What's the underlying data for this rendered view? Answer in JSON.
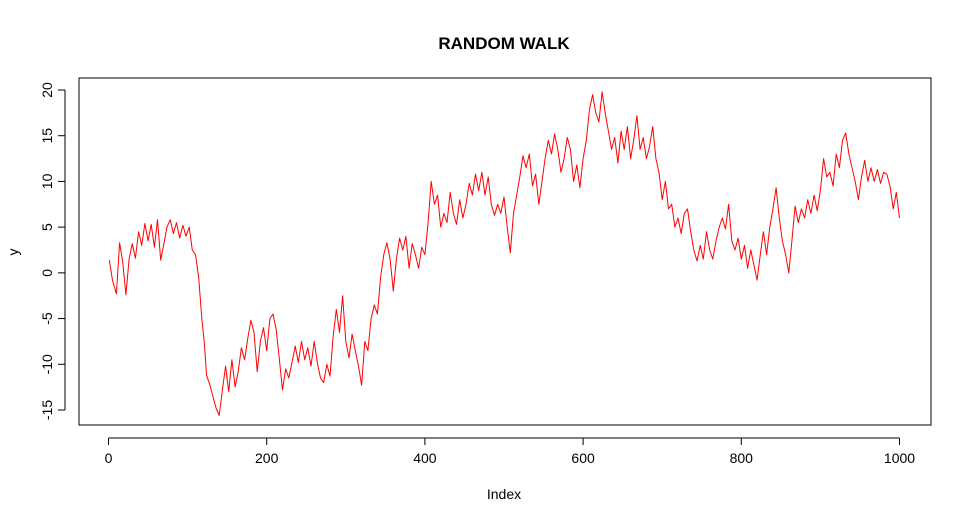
{
  "chart_data": {
    "type": "line",
    "title": "RANDOM WALK",
    "xlabel": "Index",
    "ylabel": "y",
    "xlim": [
      0,
      1000
    ],
    "ylim": [
      -15.5,
      20
    ],
    "x_ticks": [
      0,
      200,
      400,
      600,
      800,
      1000
    ],
    "y_ticks": [
      -15,
      -10,
      -5,
      0,
      5,
      10,
      15,
      20
    ],
    "grid": false,
    "box": true,
    "series": [
      {
        "color": "#ff0000",
        "points": [
          [
            1,
            1.4
          ],
          [
            5,
            -0.8
          ],
          [
            10,
            -2.3
          ],
          [
            14,
            3.3
          ],
          [
            18,
            1.2
          ],
          [
            22,
            -2.4
          ],
          [
            26,
            1.5
          ],
          [
            30,
            3.2
          ],
          [
            34,
            1.6
          ],
          [
            38,
            4.5
          ],
          [
            42,
            3.0
          ],
          [
            46,
            5.4
          ],
          [
            50,
            3.5
          ],
          [
            54,
            5.3
          ],
          [
            58,
            2.8
          ],
          [
            62,
            5.8
          ],
          [
            66,
            1.4
          ],
          [
            70,
            3.2
          ],
          [
            74,
            5.0
          ],
          [
            78,
            5.8
          ],
          [
            82,
            4.3
          ],
          [
            86,
            5.5
          ],
          [
            90,
            3.8
          ],
          [
            94,
            5.2
          ],
          [
            98,
            4.0
          ],
          [
            102,
            5.0
          ],
          [
            106,
            2.5
          ],
          [
            110,
            2.0
          ],
          [
            114,
            -0.5
          ],
          [
            118,
            -5.0
          ],
          [
            121,
            -7.5
          ],
          [
            124,
            -11.2
          ],
          [
            128,
            -12.2
          ],
          [
            132,
            -13.5
          ],
          [
            136,
            -14.8
          ],
          [
            140,
            -15.6
          ],
          [
            144,
            -12.8
          ],
          [
            148,
            -10.2
          ],
          [
            152,
            -13.0
          ],
          [
            156,
            -9.5
          ],
          [
            160,
            -12.5
          ],
          [
            164,
            -10.8
          ],
          [
            168,
            -8.2
          ],
          [
            172,
            -9.5
          ],
          [
            176,
            -7.2
          ],
          [
            180,
            -5.2
          ],
          [
            184,
            -6.5
          ],
          [
            188,
            -10.8
          ],
          [
            192,
            -7.5
          ],
          [
            196,
            -6.0
          ],
          [
            200,
            -8.5
          ],
          [
            204,
            -5.0
          ],
          [
            208,
            -4.5
          ],
          [
            212,
            -6.2
          ],
          [
            216,
            -9.5
          ],
          [
            220,
            -12.8
          ],
          [
            224,
            -10.5
          ],
          [
            228,
            -11.5
          ],
          [
            232,
            -9.8
          ],
          [
            236,
            -8.0
          ],
          [
            240,
            -9.8
          ],
          [
            244,
            -7.5
          ],
          [
            248,
            -9.5
          ],
          [
            252,
            -8.2
          ],
          [
            256,
            -10.2
          ],
          [
            260,
            -7.5
          ],
          [
            264,
            -9.8
          ],
          [
            268,
            -11.5
          ],
          [
            272,
            -12.0
          ],
          [
            276,
            -10.0
          ],
          [
            280,
            -11.3
          ],
          [
            284,
            -7.0
          ],
          [
            288,
            -4.0
          ],
          [
            292,
            -6.5
          ],
          [
            296,
            -2.5
          ],
          [
            300,
            -7.5
          ],
          [
            304,
            -9.3
          ],
          [
            308,
            -6.7
          ],
          [
            312,
            -8.5
          ],
          [
            316,
            -10.2
          ],
          [
            320,
            -12.3
          ],
          [
            324,
            -7.5
          ],
          [
            328,
            -8.5
          ],
          [
            332,
            -5.0
          ],
          [
            336,
            -3.5
          ],
          [
            340,
            -4.5
          ],
          [
            344,
            -0.5
          ],
          [
            348,
            2.0
          ],
          [
            352,
            3.3
          ],
          [
            356,
            1.5
          ],
          [
            360,
            -2.0
          ],
          [
            364,
            1.5
          ],
          [
            368,
            3.8
          ],
          [
            372,
            2.5
          ],
          [
            376,
            4.0
          ],
          [
            380,
            0.5
          ],
          [
            384,
            3.2
          ],
          [
            388,
            2.0
          ],
          [
            392,
            0.5
          ],
          [
            396,
            2.8
          ],
          [
            400,
            2.0
          ],
          [
            404,
            5.5
          ],
          [
            408,
            10.0
          ],
          [
            412,
            7.5
          ],
          [
            416,
            8.5
          ],
          [
            420,
            5.0
          ],
          [
            424,
            6.5
          ],
          [
            428,
            5.5
          ],
          [
            432,
            8.8
          ],
          [
            436,
            6.5
          ],
          [
            440,
            5.3
          ],
          [
            444,
            8.0
          ],
          [
            448,
            6.0
          ],
          [
            452,
            7.5
          ],
          [
            456,
            9.8
          ],
          [
            460,
            8.5
          ],
          [
            464,
            10.8
          ],
          [
            468,
            9.0
          ],
          [
            472,
            11.0
          ],
          [
            476,
            8.5
          ],
          [
            480,
            10.5
          ],
          [
            484,
            7.5
          ],
          [
            488,
            6.3
          ],
          [
            492,
            7.5
          ],
          [
            496,
            6.5
          ],
          [
            500,
            8.3
          ],
          [
            504,
            5.0
          ],
          [
            508,
            2.2
          ],
          [
            512,
            6.5
          ],
          [
            516,
            8.5
          ],
          [
            520,
            10.5
          ],
          [
            524,
            12.8
          ],
          [
            528,
            11.5
          ],
          [
            532,
            13.0
          ],
          [
            536,
            9.5
          ],
          [
            540,
            10.8
          ],
          [
            544,
            7.5
          ],
          [
            548,
            10.0
          ],
          [
            552,
            12.5
          ],
          [
            556,
            14.5
          ],
          [
            560,
            13.0
          ],
          [
            564,
            15.2
          ],
          [
            568,
            13.5
          ],
          [
            572,
            11.0
          ],
          [
            576,
            12.5
          ],
          [
            580,
            14.8
          ],
          [
            584,
            13.5
          ],
          [
            588,
            10.0
          ],
          [
            592,
            11.8
          ],
          [
            596,
            9.3
          ],
          [
            600,
            12.5
          ],
          [
            604,
            14.5
          ],
          [
            608,
            17.8
          ],
          [
            612,
            19.5
          ],
          [
            616,
            17.5
          ],
          [
            620,
            16.5
          ],
          [
            624,
            19.8
          ],
          [
            628,
            17.5
          ],
          [
            632,
            15.5
          ],
          [
            636,
            13.5
          ],
          [
            640,
            14.8
          ],
          [
            644,
            12.0
          ],
          [
            648,
            15.5
          ],
          [
            652,
            13.5
          ],
          [
            656,
            16.0
          ],
          [
            660,
            12.5
          ],
          [
            664,
            14.5
          ],
          [
            668,
            17.2
          ],
          [
            672,
            13.5
          ],
          [
            676,
            14.8
          ],
          [
            680,
            12.5
          ],
          [
            684,
            13.8
          ],
          [
            688,
            16.0
          ],
          [
            692,
            12.5
          ],
          [
            696,
            11.0
          ],
          [
            700,
            8.0
          ],
          [
            704,
            10.0
          ],
          [
            708,
            7.0
          ],
          [
            712,
            7.5
          ],
          [
            716,
            5.0
          ],
          [
            720,
            6.0
          ],
          [
            724,
            4.3
          ],
          [
            728,
            6.5
          ],
          [
            732,
            7.0
          ],
          [
            736,
            4.5
          ],
          [
            740,
            2.5
          ],
          [
            744,
            1.3
          ],
          [
            748,
            3.0
          ],
          [
            752,
            1.5
          ],
          [
            756,
            4.5
          ],
          [
            760,
            2.5
          ],
          [
            764,
            1.5
          ],
          [
            768,
            3.5
          ],
          [
            772,
            5.0
          ],
          [
            776,
            6.0
          ],
          [
            780,
            4.8
          ],
          [
            784,
            7.5
          ],
          [
            788,
            3.5
          ],
          [
            792,
            2.5
          ],
          [
            796,
            3.8
          ],
          [
            800,
            1.5
          ],
          [
            804,
            3.0
          ],
          [
            808,
            0.5
          ],
          [
            812,
            2.5
          ],
          [
            816,
            0.8
          ],
          [
            820,
            -0.8
          ],
          [
            824,
            2.0
          ],
          [
            828,
            4.5
          ],
          [
            832,
            2.0
          ],
          [
            836,
            5.0
          ],
          [
            840,
            7.0
          ],
          [
            844,
            9.3
          ],
          [
            848,
            6.0
          ],
          [
            852,
            3.5
          ],
          [
            856,
            2.0
          ],
          [
            860,
            0.0
          ],
          [
            864,
            3.5
          ],
          [
            868,
            7.3
          ],
          [
            872,
            5.5
          ],
          [
            876,
            7.0
          ],
          [
            880,
            6.0
          ],
          [
            884,
            8.0
          ],
          [
            888,
            6.5
          ],
          [
            892,
            8.5
          ],
          [
            896,
            6.8
          ],
          [
            900,
            9.0
          ],
          [
            904,
            12.5
          ],
          [
            908,
            10.5
          ],
          [
            912,
            11.0
          ],
          [
            916,
            9.5
          ],
          [
            920,
            13.0
          ],
          [
            924,
            11.5
          ],
          [
            928,
            14.5
          ],
          [
            932,
            15.3
          ],
          [
            936,
            13.0
          ],
          [
            940,
            11.5
          ],
          [
            944,
            10.0
          ],
          [
            948,
            8.0
          ],
          [
            952,
            10.5
          ],
          [
            956,
            12.3
          ],
          [
            960,
            10.0
          ],
          [
            964,
            11.5
          ],
          [
            968,
            10.0
          ],
          [
            972,
            11.3
          ],
          [
            976,
            9.8
          ],
          [
            980,
            11.0
          ],
          [
            984,
            10.8
          ],
          [
            988,
            9.5
          ],
          [
            992,
            7.0
          ],
          [
            996,
            8.8
          ],
          [
            1000,
            6.0
          ]
        ]
      }
    ]
  }
}
